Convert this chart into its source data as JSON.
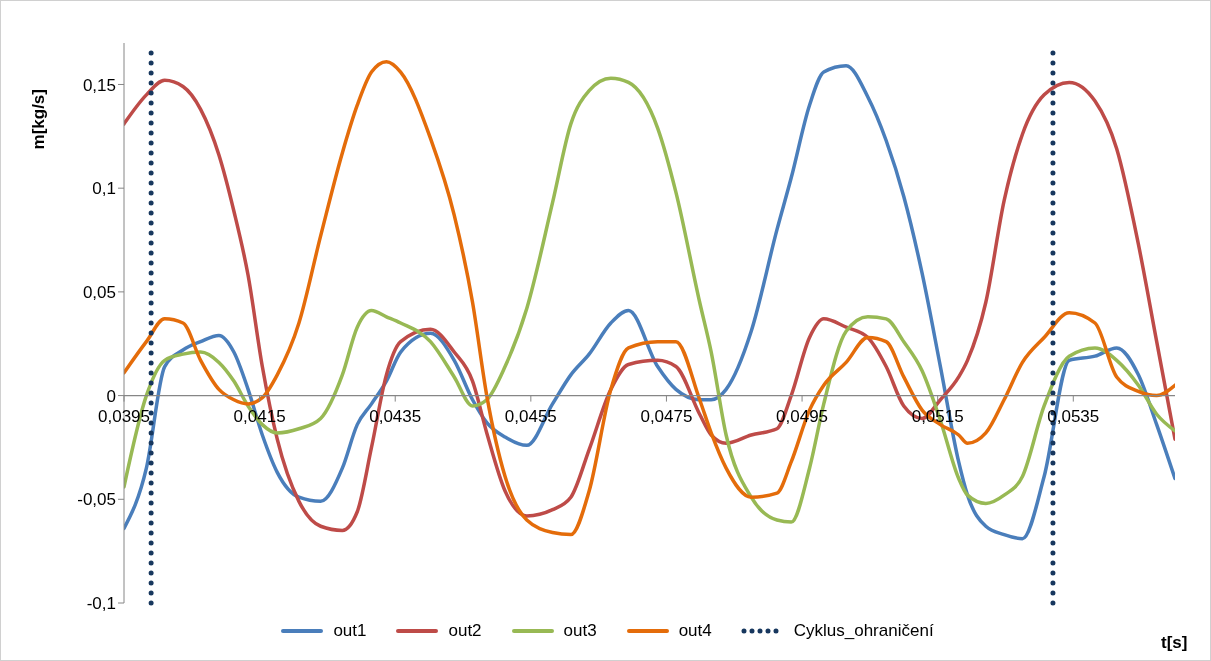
{
  "chart_data": {
    "type": "line",
    "xlabel": "t[s]",
    "ylabel": "m[kg/s]",
    "x": [
      0.0395,
      0.03983,
      0.0401,
      0.04037,
      0.04063,
      0.0409,
      0.04112,
      0.04133,
      0.04154,
      0.04176,
      0.04208,
      0.0424,
      0.04272,
      0.04294,
      0.04315,
      0.04337,
      0.04358,
      0.04402,
      0.04437,
      0.04464,
      0.04485,
      0.04512,
      0.04544,
      0.04582,
      0.04609,
      0.04636,
      0.04668,
      0.04694,
      0.04737,
      0.04764,
      0.04799,
      0.04816,
      0.04838,
      0.04875,
      0.04913,
      0.04934,
      0.04961,
      0.04982,
      0.05015,
      0.05047,
      0.05074,
      0.051,
      0.05127,
      0.05154,
      0.05181,
      0.05194,
      0.05221,
      0.05248,
      0.05275,
      0.05307,
      0.05344,
      0.05382,
      0.05414,
      0.05446,
      0.05473,
      0.055
    ],
    "series": [
      {
        "name": "out1",
        "color": "#4a7ebb",
        "values": [
          -0.064,
          -0.035,
          0.014,
          0.022,
          0.026,
          0.029,
          0.021,
          0.003,
          -0.019,
          -0.037,
          -0.049,
          -0.051,
          -0.035,
          -0.014,
          -0.004,
          0.007,
          0.021,
          0.03,
          0.017,
          -0.002,
          -0.013,
          -0.02,
          -0.024,
          -0.004,
          0.01,
          0.02,
          0.035,
          0.041,
          0.014,
          0.003,
          -0.002,
          -0.002,
          0.003,
          0.031,
          0.08,
          0.105,
          0.14,
          0.156,
          0.159,
          0.144,
          0.123,
          0.096,
          0.059,
          0.014,
          -0.032,
          -0.048,
          -0.063,
          -0.067,
          -0.069,
          -0.039,
          0.017,
          0.019,
          0.023,
          0.01,
          -0.014,
          -0.04
        ]
      },
      {
        "name": "out2",
        "color": "#be4b48",
        "values": [
          0.131,
          0.145,
          0.152,
          0.149,
          0.138,
          0.116,
          0.089,
          0.058,
          0.014,
          -0.021,
          -0.051,
          -0.063,
          -0.065,
          -0.056,
          -0.025,
          0.01,
          0.026,
          0.032,
          0.021,
          0.007,
          -0.018,
          -0.046,
          -0.058,
          -0.055,
          -0.049,
          -0.026,
          0.003,
          0.015,
          0.017,
          0.014,
          -0.009,
          -0.019,
          -0.023,
          -0.019,
          -0.016,
          0.0,
          0.028,
          0.037,
          0.033,
          0.028,
          0.014,
          -0.005,
          -0.011,
          -0.002,
          0.009,
          0.017,
          0.045,
          0.094,
          0.126,
          0.145,
          0.151,
          0.142,
          0.119,
          0.073,
          0.026,
          -0.021
        ]
      },
      {
        "name": "out3",
        "color": "#98b954",
        "values": [
          -0.044,
          0.0,
          0.017,
          0.02,
          0.021,
          0.016,
          0.007,
          -0.005,
          -0.014,
          -0.018,
          -0.016,
          -0.011,
          0.01,
          0.033,
          0.041,
          0.038,
          0.035,
          0.026,
          0.009,
          -0.005,
          -0.002,
          0.014,
          0.042,
          0.093,
          0.131,
          0.147,
          0.153,
          0.151,
          0.129,
          0.098,
          0.045,
          0.021,
          -0.019,
          -0.049,
          -0.06,
          -0.061,
          -0.035,
          -0.004,
          0.031,
          0.038,
          0.037,
          0.026,
          0.012,
          -0.012,
          -0.04,
          -0.048,
          -0.052,
          -0.048,
          -0.039,
          -0.005,
          0.019,
          0.023,
          0.017,
          0.005,
          -0.009,
          -0.017
        ]
      },
      {
        "name": "out4",
        "color": "#e46c0a",
        "values": [
          0.011,
          0.026,
          0.037,
          0.035,
          0.017,
          0.003,
          -0.002,
          -0.004,
          -0.001,
          0.01,
          0.035,
          0.077,
          0.117,
          0.14,
          0.156,
          0.161,
          0.156,
          0.124,
          0.087,
          0.045,
          0.0,
          -0.039,
          -0.06,
          -0.066,
          -0.067,
          -0.046,
          0.003,
          0.023,
          0.026,
          0.026,
          -0.002,
          -0.018,
          -0.035,
          -0.049,
          -0.047,
          -0.032,
          -0.007,
          0.005,
          0.016,
          0.028,
          0.026,
          0.009,
          -0.007,
          -0.014,
          -0.019,
          -0.023,
          -0.018,
          -0.002,
          0.016,
          0.028,
          0.04,
          0.035,
          0.009,
          0.002,
          0.0,
          0.005
        ]
      }
    ],
    "ref_lines": [
      {
        "axis": "x",
        "value": 0.0399,
        "label": "Cyklus_ohraničení",
        "color": "#17375e",
        "line_style": "dotted"
      },
      {
        "axis": "x",
        "value": 0.0532,
        "color": "#17375e",
        "line_style": "dotted"
      }
    ],
    "xlim": [
      0.0395,
      0.055
    ],
    "xticks": [
      {
        "value": 0.0395,
        "label": "0,0395"
      },
      {
        "value": 0.0415,
        "label": "0,0415"
      },
      {
        "value": 0.0435,
        "label": "0,0435"
      },
      {
        "value": 0.0455,
        "label": "0,0455"
      },
      {
        "value": 0.0475,
        "label": "0,0475"
      },
      {
        "value": 0.0495,
        "label": "0,0495"
      },
      {
        "value": 0.0515,
        "label": "0,0515"
      },
      {
        "value": 0.0535,
        "label": "0,0535"
      }
    ],
    "ylim": [
      -0.1,
      0.17
    ],
    "yticks": [
      {
        "value": -0.1,
        "label": "-0,1"
      },
      {
        "value": -0.05,
        "label": "-0,05"
      },
      0,
      {
        "value": 0.05,
        "label": "0,05"
      },
      {
        "value": 0.1,
        "label": "0,1"
      },
      {
        "value": 0.15,
        "label": "0,15"
      }
    ],
    "legend": "bottom",
    "marker": "none",
    "line_style": "solid"
  }
}
